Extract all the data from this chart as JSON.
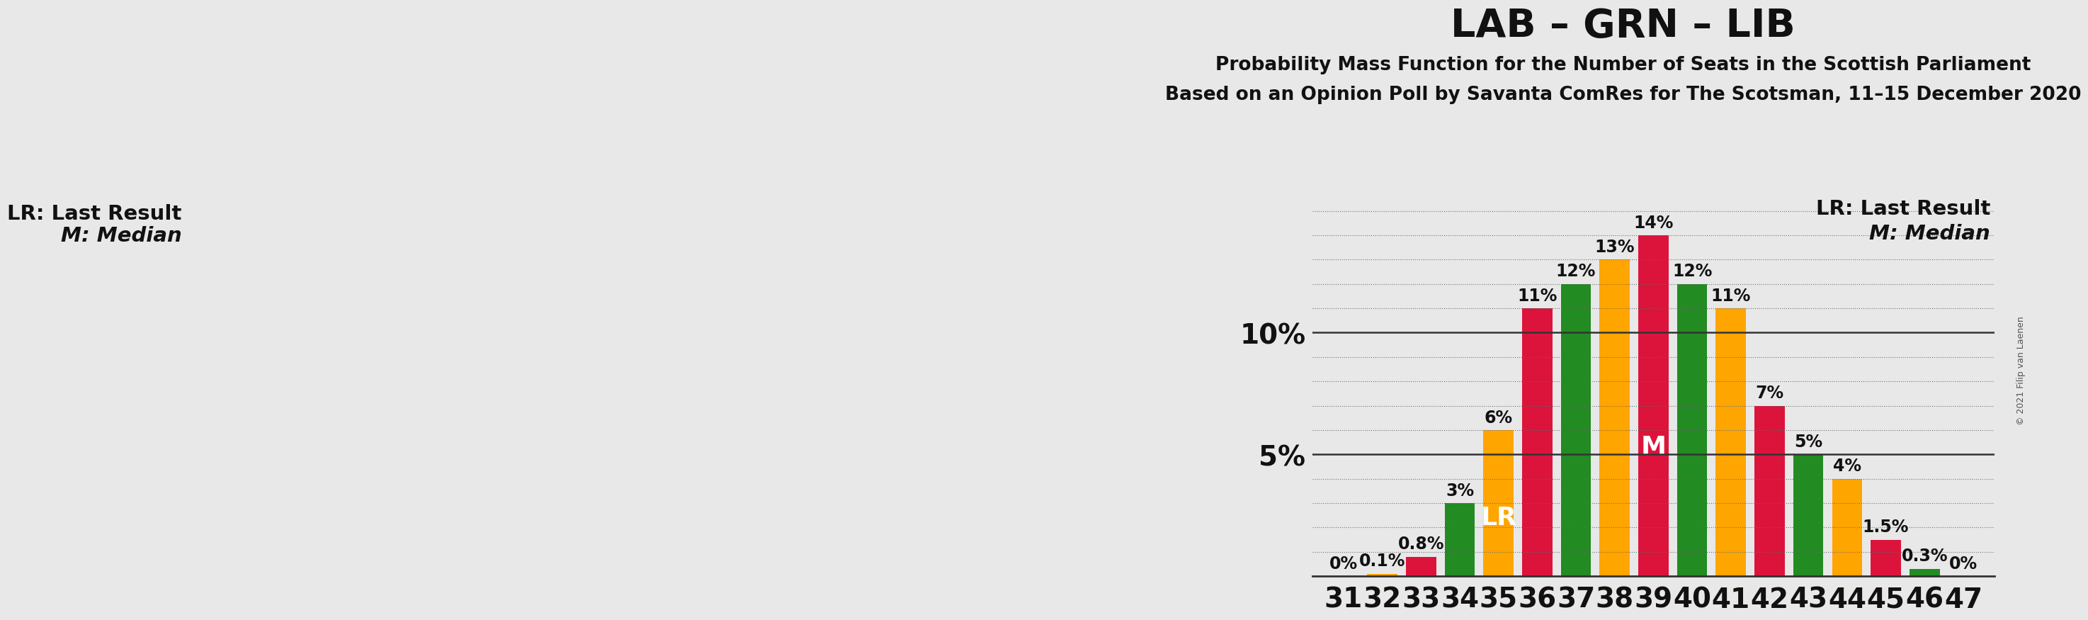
{
  "title": "LAB – GRN – LIB",
  "subtitle1": "Probability Mass Function for the Number of Seats in the Scottish Parliament",
  "subtitle2": "Based on an Opinion Poll by Savanta ComRes for The Scotsman, 11–15 December 2020",
  "copyright": "© 2021 Filip van Laenen",
  "legend_lr": "LR: Last Result",
  "legend_m": "M: Median",
  "seats": [
    31,
    32,
    33,
    34,
    35,
    36,
    37,
    38,
    39,
    40,
    41,
    42,
    43,
    44,
    45,
    46,
    47
  ],
  "values": [
    0.0,
    0.1,
    0.8,
    3.0,
    6.0,
    11.0,
    12.0,
    13.0,
    14.0,
    12.0,
    11.0,
    7.0,
    5.0,
    4.0,
    1.5,
    0.3,
    0.0
  ],
  "labels": [
    "0%",
    "0.1%",
    "0.8%",
    "3%",
    "6%",
    "11%",
    "12%",
    "13%",
    "14%",
    "12%",
    "11%",
    "7%",
    "5%",
    "4%",
    "1.5%",
    "0.3%",
    "0%"
  ],
  "colors": [
    "#FFA500",
    "#FFA500",
    "#DC143C",
    "#228B22",
    "#FFA500",
    "#DC143C",
    "#228B22",
    "#FFA500",
    "#DC143C",
    "#228B22",
    "#FFA500",
    "#DC143C",
    "#228B22",
    "#FFA500",
    "#DC143C",
    "#228B22",
    "#FFA500"
  ],
  "lr_seat": 35,
  "median_seat": 39,
  "background_color": "#E8E8E8",
  "ylim_max": 16,
  "title_fontsize": 40,
  "subtitle_fontsize": 19,
  "bar_label_fontsize": 17,
  "lr_m_fontsize": 26,
  "legend_fontsize": 21,
  "tick_fontsize": 28
}
